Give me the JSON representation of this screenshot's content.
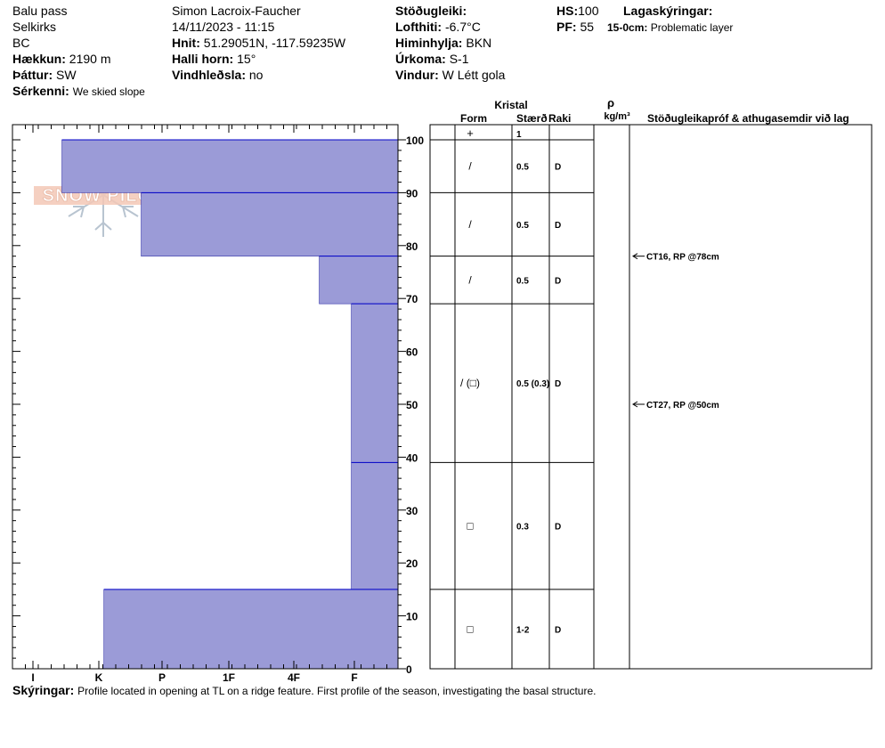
{
  "site": {
    "location": "Balu pass",
    "range": "Selkirks",
    "region": "BC",
    "elevation_label": "Hækkun:",
    "elevation": "2190 m",
    "aspect_label": "Þáttur:",
    "aspect": "SW",
    "feature_label": "Sérkenni:",
    "feature": "We skied slope"
  },
  "observer": {
    "name": "Simon Lacroix-Faucher",
    "datetime": "14/11/2023 - 11:15",
    "coords_label": "Hnit:",
    "coords": "51.29051N, -117.59235W",
    "slope_label": "Halli horn:",
    "slope": "15°",
    "wind_loading_label": "Vindhleðsla:",
    "wind_loading": "no"
  },
  "conditions": {
    "stability_label": "Stöðugleiki:",
    "stability": "",
    "air_temp_label": "Lofthiti:",
    "air_temp": "-6.7°C",
    "sky_label": "Himinhylja:",
    "sky": "BKN",
    "precip_label": "Úrkoma:",
    "precip": "S-1",
    "wind_label": "Vindur:",
    "wind": "W Létt gola"
  },
  "depths": {
    "hs_label": "HS:",
    "hs": "100",
    "pf_label": "PF:",
    "pf": "55"
  },
  "layer_notes": {
    "label": "Lagaskýringar:",
    "items": [
      {
        "depth": "15-0cm:",
        "text": "Problematic layer"
      }
    ]
  },
  "logo": {
    "text": "SNOW PILOT"
  },
  "columns": {
    "crystal": "Kristal",
    "form": "Form",
    "size": "Stærð",
    "moisture": "Raki",
    "density_symbol": "ρ",
    "density_unit": "kg/m³",
    "tests": "Stöðugleikapróf & athugasemdir við lag"
  },
  "comments": {
    "label": "Skýringar:",
    "text": "Profile located in opening at TL on a ridge feature. First profile of the season, investigating the basal structure."
  },
  "colors": {
    "hardness_fill": "#9b9bd7",
    "layer_line": "#0000c8"
  },
  "chart_data": {
    "type": "bar",
    "orientation": "horizontal-profile",
    "y_range": [
      0,
      100
    ],
    "y_ticks": [
      0,
      10,
      20,
      30,
      40,
      50,
      60,
      70,
      80,
      90,
      100
    ],
    "hardness_ticks": [
      "I",
      "K",
      "P",
      "1F",
      "4F",
      "F"
    ],
    "layers": [
      {
        "top": 100,
        "bottom": 90,
        "hardness": 0.44,
        "form": "/",
        "size": "0.5",
        "moisture": "D"
      },
      {
        "top": 90,
        "bottom": 78,
        "hardness": 1.67,
        "form": "/",
        "size": "0.5",
        "moisture": "D"
      },
      {
        "top": 78,
        "bottom": 69,
        "hardness": 4.42,
        "form": "/",
        "size": "0.5",
        "moisture": "D"
      },
      {
        "top": 69,
        "bottom": 39,
        "hardness": 4.95,
        "form": "/ (□)",
        "size": "0.5 (0.3)",
        "moisture": "D"
      },
      {
        "top": 39,
        "bottom": 15,
        "hardness": 4.95,
        "form": "□",
        "size": "0.3",
        "moisture": "D"
      },
      {
        "top": 15,
        "bottom": 0,
        "hardness": 1.08,
        "form": "□",
        "size": "1-2",
        "moisture": "D"
      }
    ],
    "surface_form": "+",
    "surface_size": "1",
    "tests": [
      {
        "depth": 78,
        "text": "CT16, RP @78cm"
      },
      {
        "depth": 50,
        "text": "CT27, RP @50cm"
      }
    ]
  }
}
